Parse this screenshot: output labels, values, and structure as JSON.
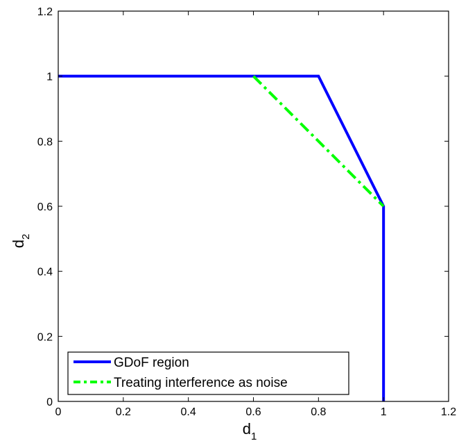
{
  "chart_data": {
    "type": "line",
    "title": "",
    "xlabel": "d",
    "xlabel_sub": "1",
    "ylabel": "d",
    "ylabel_sub": "2",
    "xlim": [
      0,
      1.2
    ],
    "ylim": [
      0,
      1.2
    ],
    "xticks": [
      0,
      0.2,
      0.4,
      0.6,
      0.8,
      1,
      1.2
    ],
    "yticks": [
      0,
      0.2,
      0.4,
      0.6,
      0.8,
      1,
      1.2
    ],
    "xtick_labels": [
      "0",
      "0.2",
      "0.4",
      "0.6",
      "0.8",
      "1",
      "1.2"
    ],
    "ytick_labels": [
      "0",
      "0.2",
      "0.4",
      "0.6",
      "0.8",
      "1",
      "1.2"
    ],
    "grid": false,
    "legend_position": "bottom-left",
    "series": [
      {
        "name": "GDoF region",
        "color": "#0000ff",
        "line_style": "solid",
        "points": [
          [
            0,
            1
          ],
          [
            0.8,
            1
          ],
          [
            1,
            0.6
          ],
          [
            1,
            0
          ]
        ]
      },
      {
        "name": "Treating interference as noise",
        "color": "#00ff00",
        "line_style": "dash-dot",
        "points": [
          [
            0.6,
            1
          ],
          [
            1,
            0.6
          ]
        ]
      }
    ]
  }
}
